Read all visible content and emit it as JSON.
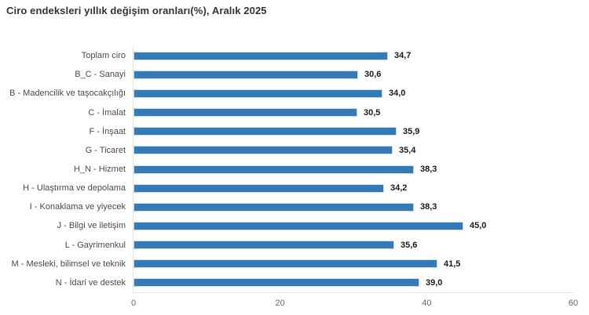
{
  "title": "Ciro endeksleri yıllık değişim oranları(%), Aralık 2025",
  "chart_data": {
    "type": "bar",
    "orientation": "horizontal",
    "title": "Ciro endeksleri yıllık değişim oranları(%), Aralık 2025",
    "categories": [
      "Toplam ciro",
      "B_C - Sanayi",
      "B - Madencilik ve taşocakçılığı",
      "C - İmalat",
      "F - İnşaat",
      "G - Ticaret",
      "H_N - Hizmet",
      "H - Ulaştırma ve depolama",
      "I - Konaklama ve yiyecek",
      "J - Bilgi ve iletişim",
      "L - Gayrimenkul",
      "M - Mesleki, bilimsel ve teknik",
      "N - İdari ve destek"
    ],
    "values": [
      34.7,
      30.6,
      34.0,
      30.5,
      35.9,
      35.4,
      38.3,
      34.2,
      38.3,
      45.0,
      35.6,
      41.5,
      39.0
    ],
    "value_labels": [
      "34,7",
      "30,6",
      "34,0",
      "30,5",
      "35,9",
      "35,4",
      "38,3",
      "34,2",
      "38,3",
      "45,0",
      "35,6",
      "41,5",
      "39,0"
    ],
    "xlabel": "",
    "ylabel": "",
    "xlim": [
      0,
      60
    ],
    "x_ticks": [
      0,
      20,
      40,
      60
    ],
    "x_tick_labels": [
      "0",
      "20",
      "40",
      "60"
    ],
    "grid": false,
    "legend": "none",
    "colors": {
      "bar_fill": "#3579b5",
      "bar_border": "#c9dff0",
      "axis_line": "#e6e6e6",
      "category_label": "#4a4a4a",
      "value_label": "#1a1a1a",
      "tick_label": "#666666",
      "title": "#333333",
      "background": "#ffffff"
    }
  }
}
